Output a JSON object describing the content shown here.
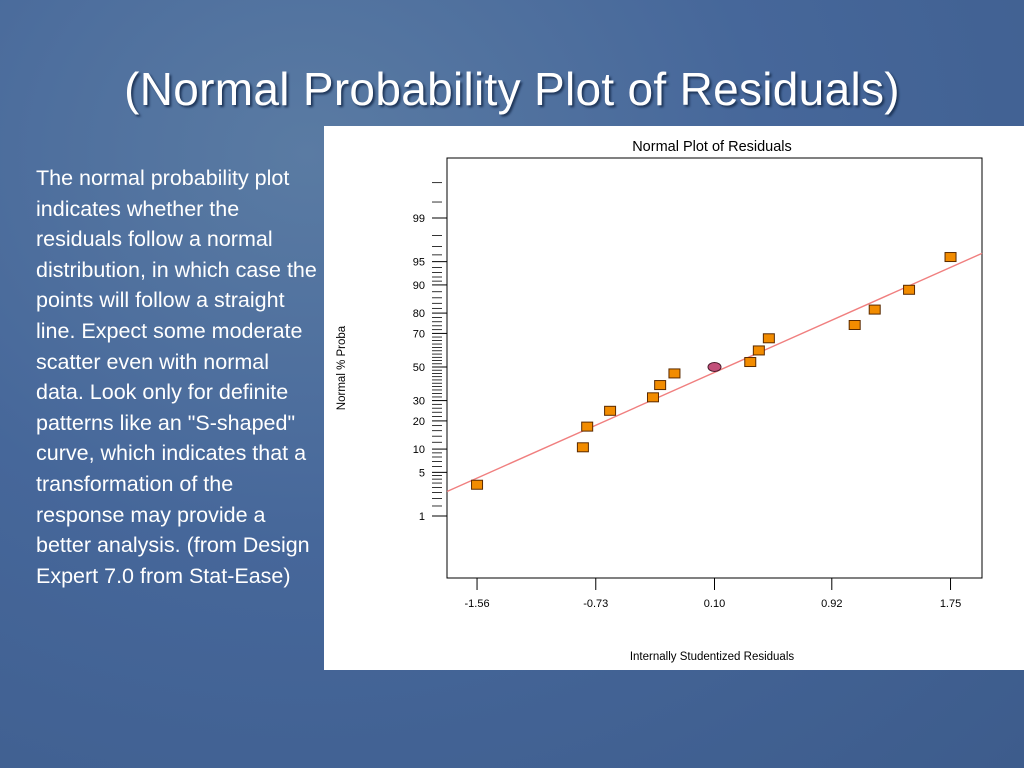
{
  "slide": {
    "title": "(Normal Probability Plot of Residuals)",
    "body": "The normal probability plot indicates whether the residuals follow a normal distribution, in which case the points will follow a straight line. Expect some moderate scatter even with normal data. Look only for definite patterns like an \"S-shaped\" curve, which indicates that a transformation of the response may provide a better analysis.  (from Design Expert 7.0 from Stat-Ease)"
  },
  "chart_data": {
    "type": "scatter",
    "title": "Normal Plot of Residuals",
    "xlabel": "Internally Studentized Residuals",
    "ylabel": "Normal % Proba",
    "xlim": [
      -1.77,
      1.97
    ],
    "x_ticks": [
      -1.56,
      -0.73,
      0.1,
      0.92,
      1.75
    ],
    "x_tick_labels": [
      "-1.56",
      "-0.73",
      "0.10",
      "0.92",
      "1.75"
    ],
    "y_scale": "normal-probability",
    "y_ticks": [
      1,
      5,
      10,
      20,
      30,
      50,
      70,
      80,
      90,
      95,
      99
    ],
    "y_tick_labels": [
      "1",
      "5",
      "10",
      "20",
      "30",
      "50",
      "70",
      "80",
      "90",
      "95",
      "99"
    ],
    "grid": false,
    "points": [
      {
        "x": -1.56,
        "y": 3.3
      },
      {
        "x": -0.82,
        "y": 10.5
      },
      {
        "x": -0.79,
        "y": 17.6
      },
      {
        "x": -0.63,
        "y": 24.7
      },
      {
        "x": -0.33,
        "y": 31.8
      },
      {
        "x": -0.28,
        "y": 38.9
      },
      {
        "x": -0.18,
        "y": 46.0
      },
      {
        "x": 0.1,
        "y": 50.0,
        "highlight": true
      },
      {
        "x": 0.35,
        "y": 53.1
      },
      {
        "x": 0.41,
        "y": 60.2
      },
      {
        "x": 0.48,
        "y": 67.3
      },
      {
        "x": 1.08,
        "y": 74.4
      },
      {
        "x": 1.22,
        "y": 81.5
      },
      {
        "x": 1.46,
        "y": 88.6
      },
      {
        "x": 1.75,
        "y": 95.7
      }
    ],
    "fit_line": {
      "x": [
        -1.77,
        1.97
      ],
      "y": [
        2.6,
        96.2
      ]
    },
    "colors": {
      "point_fill": "#f28c00",
      "point_stroke": "#5a2a00",
      "highlight_fill": "#c2507a",
      "line": "#f07f7f"
    }
  }
}
